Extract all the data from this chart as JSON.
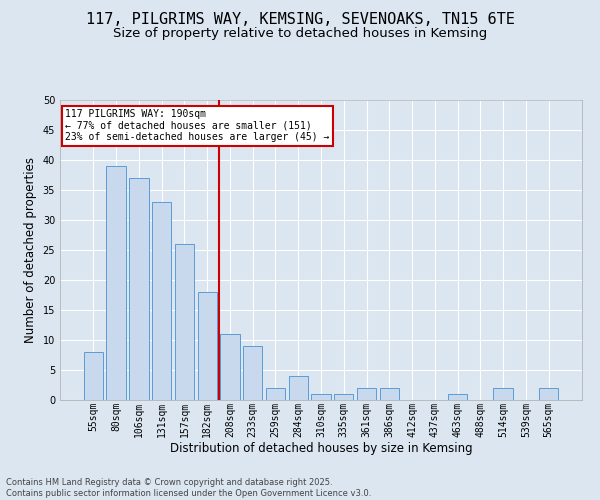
{
  "title": "117, PILGRIMS WAY, KEMSING, SEVENOAKS, TN15 6TE",
  "subtitle": "Size of property relative to detached houses in Kemsing",
  "xlabel": "Distribution of detached houses by size in Kemsing",
  "ylabel": "Number of detached properties",
  "categories": [
    "55sqm",
    "80sqm",
    "106sqm",
    "131sqm",
    "157sqm",
    "182sqm",
    "208sqm",
    "233sqm",
    "259sqm",
    "284sqm",
    "310sqm",
    "335sqm",
    "361sqm",
    "386sqm",
    "412sqm",
    "437sqm",
    "463sqm",
    "488sqm",
    "514sqm",
    "539sqm",
    "565sqm"
  ],
  "values": [
    8,
    39,
    37,
    33,
    26,
    18,
    11,
    9,
    2,
    4,
    1,
    1,
    2,
    2,
    0,
    0,
    1,
    0,
    2,
    0,
    2
  ],
  "bar_color": "#c9d9ed",
  "bar_edgecolor": "#5b9bd5",
  "vline_x": 5.5,
  "vline_color": "#cc0000",
  "annotation_text": "117 PILGRIMS WAY: 190sqm\n← 77% of detached houses are smaller (151)\n23% of semi-detached houses are larger (45) →",
  "annotation_box_color": "#cc0000",
  "background_color": "#dce6f1",
  "plot_bg_color": "#dce6f1",
  "grid_color": "#ffffff",
  "title_fontsize": 11,
  "subtitle_fontsize": 9.5,
  "tick_fontsize": 7,
  "axis_label_fontsize": 8.5,
  "footer_fontsize": 6,
  "footer_line1": "Contains HM Land Registry data © Crown copyright and database right 2025.",
  "footer_line2": "Contains public sector information licensed under the Open Government Licence v3.0.",
  "ylim": [
    0,
    50
  ]
}
